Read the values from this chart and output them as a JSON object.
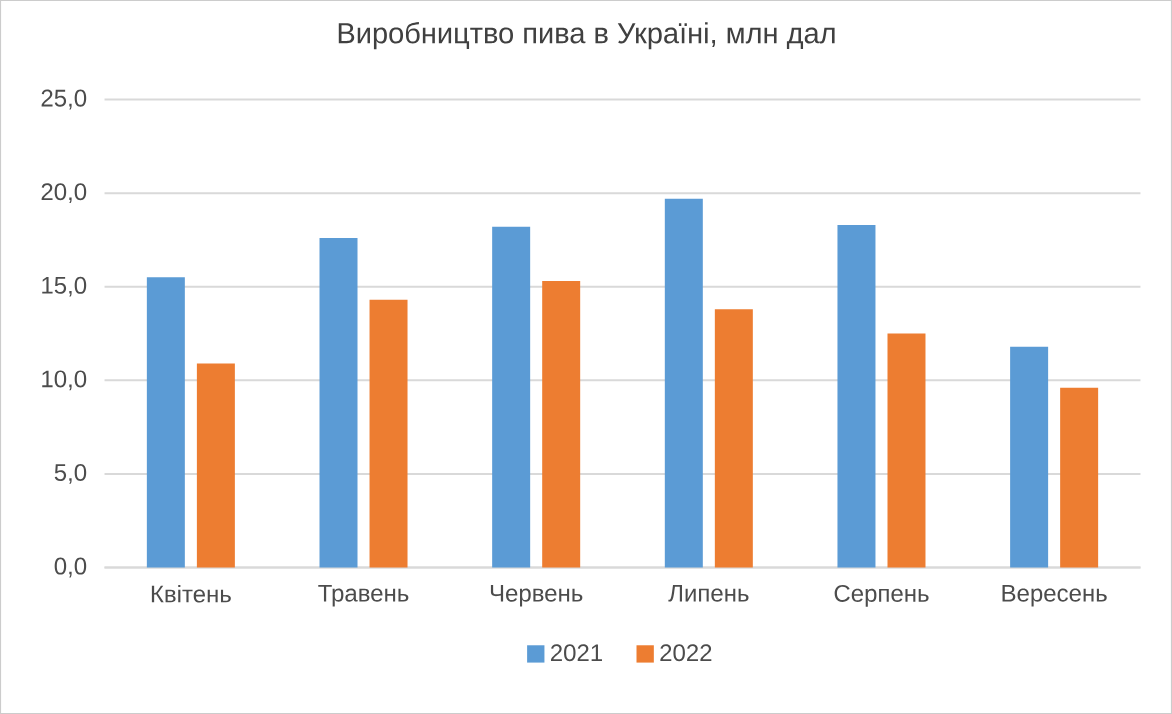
{
  "chart_data": {
    "type": "bar",
    "title": "Виробництво пива в Україні, млн дал",
    "categories": [
      "Квітень",
      "Травень",
      "Червень",
      "Липень",
      "Серпень",
      "Вересень"
    ],
    "series": [
      {
        "name": "2021",
        "color": "#5b9bd5",
        "values": [
          15.5,
          17.6,
          18.2,
          19.7,
          18.3,
          11.8
        ]
      },
      {
        "name": "2022",
        "color": "#ed7d31",
        "values": [
          10.9,
          14.3,
          15.3,
          13.8,
          12.5,
          9.6
        ]
      }
    ],
    "ylim": [
      0,
      25
    ],
    "yticks": [
      {
        "value": 0,
        "label": "0,0"
      },
      {
        "value": 5,
        "label": "5,0"
      },
      {
        "value": 10,
        "label": "10,0"
      },
      {
        "value": 15,
        "label": "15,0"
      },
      {
        "value": 20,
        "label": "20,0"
      },
      {
        "value": 25,
        "label": "25,0"
      }
    ],
    "grid": "y",
    "legend": "bottom"
  }
}
